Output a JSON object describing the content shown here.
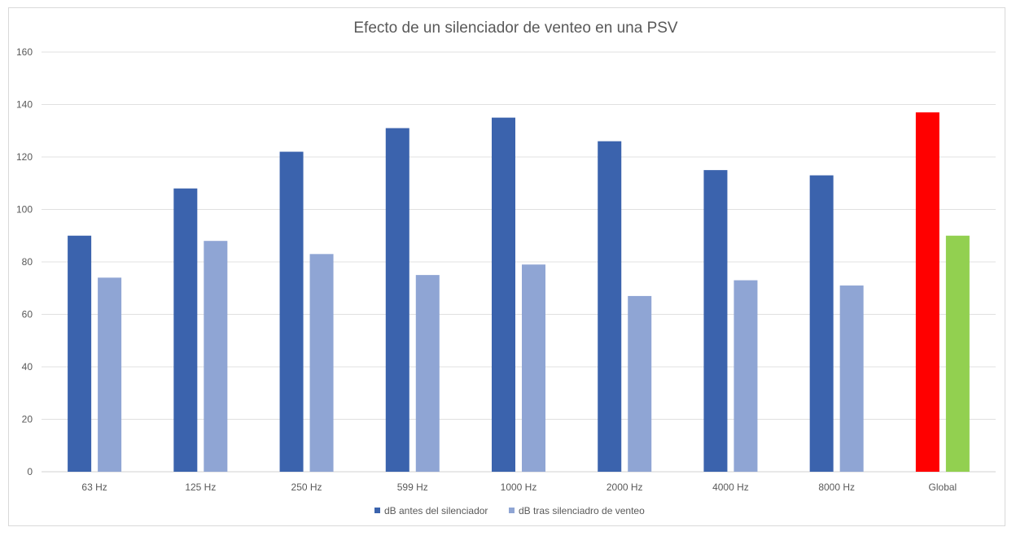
{
  "chart_data": {
    "type": "bar",
    "title": "Efecto de un silenciador de venteo en una PSV",
    "xlabel": "",
    "ylabel": "",
    "categories": [
      "63 Hz",
      "125 Hz",
      "250 Hz",
      "599 Hz",
      "1000 Hz",
      "2000 Hz",
      "4000 Hz",
      "8000 Hz",
      "Global"
    ],
    "series": [
      {
        "name": "dB antes del silenciador",
        "color": "#3b63ad",
        "values": [
          90,
          108,
          122,
          131,
          135,
          126,
          115,
          113,
          137
        ]
      },
      {
        "name": "dB tras silenciadro de venteo",
        "color": "#8fa5d4",
        "values": [
          74,
          88,
          83,
          75,
          79,
          67,
          73,
          71,
          90
        ]
      }
    ],
    "point_colors": {
      "Global": [
        "#ff0000",
        "#92d050"
      ]
    },
    "ylim": [
      0,
      160
    ],
    "yticks": [
      0,
      20,
      40,
      60,
      80,
      100,
      120,
      140,
      160
    ],
    "grid": true,
    "legend_position": "bottom"
  }
}
